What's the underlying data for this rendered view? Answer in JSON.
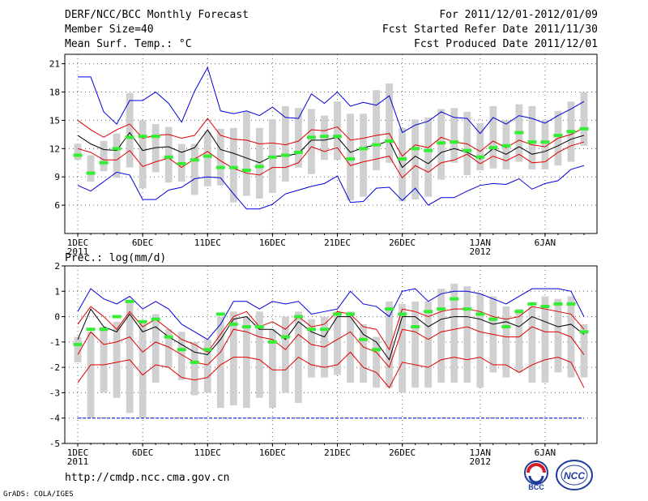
{
  "header": {
    "title": "DERF/NCC/BCC Monthly Forecast",
    "member_size": "Member Size=40",
    "variable": "Mean Surf. Temp.: °C",
    "period": "For 2011/12/01-2012/01/09",
    "started": "Fcst Started Refer Date 2011/11/30",
    "produced": "Fcst Produced Date 2011/12/01"
  },
  "precip_label": "Prec.: log(mm/d)",
  "footer": {
    "url": "http://cmdp.ncc.cma.gov.cn",
    "grads": "GrADS: COLA/IGES",
    "logo_bcc": "BCC",
    "logo_ncc": "NCC"
  },
  "colors": {
    "envelope": "#0000dd",
    "ensemble": "#dd0000",
    "mean": "#000000",
    "box": "#d0d0d0",
    "member": "#33ee33",
    "grid": "#666666"
  },
  "chart_data": [
    {
      "type": "line",
      "title": "Mean Surf. Temp.: °C",
      "x_ticks": [
        {
          "day": 1,
          "label": "1DEC",
          "sub": "2011"
        },
        {
          "day": 6,
          "label": "6DEC",
          "sub": ""
        },
        {
          "day": 11,
          "label": "11DEC",
          "sub": ""
        },
        {
          "day": 16,
          "label": "16DEC",
          "sub": ""
        },
        {
          "day": 21,
          "label": "21DEC",
          "sub": ""
        },
        {
          "day": 26,
          "label": "26DEC",
          "sub": ""
        },
        {
          "day": 32,
          "label": "1JAN",
          "sub": "2012"
        },
        {
          "day": 37,
          "label": "6JAN",
          "sub": ""
        }
      ],
      "xlim": [
        0,
        41
      ],
      "ylim": [
        3,
        22
      ],
      "y_ticks": [
        6,
        9,
        12,
        15,
        18,
        21
      ],
      "days": [
        1,
        2,
        3,
        4,
        5,
        6,
        7,
        8,
        9,
        10,
        11,
        12,
        13,
        14,
        15,
        16,
        17,
        18,
        19,
        20,
        21,
        22,
        23,
        24,
        25,
        26,
        27,
        28,
        29,
        30,
        31,
        32,
        33,
        34,
        35,
        36,
        37,
        38,
        39,
        40
      ],
      "series": [
        {
          "name": "max",
          "role": "envelope",
          "values": [
            19.6,
            19.6,
            15.9,
            14.6,
            17.1,
            17.1,
            18.0,
            16.8,
            14.8,
            18.1,
            20.6,
            16.0,
            15.7,
            16.0,
            15.5,
            16.4,
            15.3,
            15.2,
            17.8,
            16.8,
            18.0,
            16.5,
            16.9,
            16.6,
            17.6,
            13.7,
            14.5,
            14.9,
            15.9,
            15.3,
            15.2,
            13.6,
            15.3,
            14.6,
            15.5,
            15.2,
            14.7,
            15.5,
            16.2,
            17.0
          ]
        },
        {
          "name": "p75",
          "role": "ensemble",
          "values": [
            15.0,
            14.0,
            13.2,
            14.0,
            14.6,
            13.1,
            13.4,
            13.5,
            13.1,
            13.4,
            15.2,
            13.4,
            13.0,
            12.9,
            12.5,
            12.6,
            12.4,
            12.8,
            14.0,
            13.9,
            14.3,
            12.9,
            13.1,
            13.4,
            13.6,
            11.2,
            12.4,
            12.1,
            13.2,
            12.7,
            12.5,
            11.7,
            12.8,
            12.1,
            12.9,
            12.4,
            12.2,
            13.1,
            13.5,
            14.2
          ]
        },
        {
          "name": "mean",
          "role": "mean",
          "values": [
            13.4,
            12.5,
            11.9,
            11.8,
            13.7,
            11.8,
            12.1,
            12.2,
            11.6,
            12.1,
            14.0,
            11.9,
            11.5,
            11.0,
            10.5,
            11.2,
            11.2,
            11.5,
            12.9,
            12.9,
            13.2,
            11.6,
            12.1,
            12.4,
            12.8,
            10.0,
            11.2,
            10.4,
            11.6,
            12.0,
            11.6,
            10.9,
            12.0,
            11.4,
            12.2,
            11.4,
            11.7,
            12.3,
            13.0,
            13.4
          ]
        },
        {
          "name": "p25",
          "role": "ensemble",
          "values": [
            12.0,
            11.6,
            10.8,
            10.8,
            11.8,
            10.1,
            10.6,
            11.0,
            10.0,
            10.9,
            11.7,
            10.7,
            9.9,
            9.4,
            9.2,
            10.0,
            10.0,
            10.5,
            12.2,
            11.7,
            12.1,
            10.2,
            10.6,
            10.9,
            11.2,
            8.9,
            10.2,
            9.5,
            10.5,
            10.8,
            11.4,
            10.4,
            11.2,
            10.7,
            11.4,
            10.5,
            10.6,
            11.6,
            12.3,
            12.7
          ]
        },
        {
          "name": "min",
          "role": "envelope",
          "values": [
            8.1,
            7.5,
            8.5,
            9.5,
            9.2,
            6.6,
            6.6,
            7.6,
            7.9,
            8.8,
            9.0,
            8.9,
            7.2,
            5.6,
            5.6,
            6.1,
            7.2,
            7.6,
            8.0,
            8.3,
            9.1,
            6.3,
            6.4,
            7.8,
            7.9,
            6.5,
            7.8,
            6.0,
            6.8,
            6.8,
            7.5,
            8.1,
            8.3,
            8.2,
            8.8,
            7.7,
            8.3,
            8.6,
            9.8,
            10.2
          ]
        },
        {
          "name": "members",
          "role": "green",
          "values": [
            11.3,
            9.4,
            10.5,
            12.0,
            13.2,
            13.3,
            13.3,
            11.1,
            10.4,
            10.8,
            11.2,
            10.0,
            10.0,
            9.7,
            10.1,
            11.1,
            11.3,
            11.6,
            13.2,
            13.3,
            13.3,
            10.9,
            12.0,
            12.4,
            12.8,
            10.9,
            12.0,
            11.8,
            12.6,
            12.7,
            11.8,
            11.1,
            12.1,
            12.3,
            13.7,
            12.7,
            12.7,
            13.4,
            13.8,
            14.1
          ]
        }
      ],
      "boxes": [
        {
          "low": 10.8,
          "high": 12.5
        },
        {
          "low": 8.5,
          "high": 11.3
        },
        {
          "low": 9.6,
          "high": 12.8
        },
        {
          "low": 8.9,
          "high": 13.6
        },
        {
          "low": 10.0,
          "high": 17.9
        },
        {
          "low": 7.8,
          "high": 15.0
        },
        {
          "low": 9.5,
          "high": 14.6
        },
        {
          "low": 8.4,
          "high": 14.3
        },
        {
          "low": 8.5,
          "high": 12.5
        },
        {
          "low": 7.1,
          "high": 12.5
        },
        {
          "low": 8.0,
          "high": 13.8
        },
        {
          "low": 8.1,
          "high": 14.1
        },
        {
          "low": 6.3,
          "high": 14.2
        },
        {
          "low": 7.0,
          "high": 15.9
        },
        {
          "low": 6.7,
          "high": 14.2
        },
        {
          "low": 7.3,
          "high": 15.1
        },
        {
          "low": 8.5,
          "high": 16.5
        },
        {
          "low": 10.0,
          "high": 16.3
        },
        {
          "low": 9.3,
          "high": 16.2
        },
        {
          "low": 10.8,
          "high": 15.5
        },
        {
          "low": 10.8,
          "high": 17.0
        },
        {
          "low": 6.5,
          "high": 15.7
        },
        {
          "low": 6.9,
          "high": 15.7
        },
        {
          "low": 9.7,
          "high": 18.2
        },
        {
          "low": 10.5,
          "high": 18.9
        },
        {
          "low": 6.4,
          "high": 14.2
        },
        {
          "low": 6.6,
          "high": 15.1
        },
        {
          "low": 6.9,
          "high": 15.3
        },
        {
          "low": 8.7,
          "high": 16.2
        },
        {
          "low": 10.5,
          "high": 16.3
        },
        {
          "low": 9.2,
          "high": 15.9
        },
        {
          "low": 9.7,
          "high": 14.7
        },
        {
          "low": 9.9,
          "high": 16.5
        },
        {
          "low": 9.8,
          "high": 15.0
        },
        {
          "low": 10.6,
          "high": 16.7
        },
        {
          "low": 9.8,
          "high": 16.5
        },
        {
          "low": 9.8,
          "high": 15.0
        },
        {
          "low": 10.2,
          "high": 16.0
        },
        {
          "low": 10.6,
          "high": 17.0
        },
        {
          "low": 12.3,
          "high": 18.0
        }
      ]
    },
    {
      "type": "line",
      "title": "Prec.: log(mm/d)",
      "x_ticks": [
        {
          "day": 1,
          "label": "1DEC",
          "sub": "2011"
        },
        {
          "day": 6,
          "label": "6DEC",
          "sub": ""
        },
        {
          "day": 11,
          "label": "11DEC",
          "sub": ""
        },
        {
          "day": 16,
          "label": "16DEC",
          "sub": ""
        },
        {
          "day": 21,
          "label": "21DEC",
          "sub": ""
        },
        {
          "day": 26,
          "label": "26DEC",
          "sub": ""
        },
        {
          "day": 32,
          "label": "1JAN",
          "sub": "2012"
        },
        {
          "day": 37,
          "label": "6JAN",
          "sub": ""
        }
      ],
      "xlim": [
        0,
        41
      ],
      "ylim": [
        -5,
        2
      ],
      "y_ticks": [
        -5,
        -4,
        -3,
        -2,
        -1,
        0,
        1,
        2
      ],
      "days": [
        1,
        2,
        3,
        4,
        5,
        6,
        7,
        8,
        9,
        10,
        11,
        12,
        13,
        14,
        15,
        16,
        17,
        18,
        19,
        20,
        21,
        22,
        23,
        24,
        25,
        26,
        27,
        28,
        29,
        30,
        31,
        32,
        33,
        34,
        35,
        36,
        37,
        38,
        39,
        40
      ],
      "series": [
        {
          "name": "max",
          "role": "envelope",
          "values": [
            0.2,
            1.1,
            0.7,
            0.5,
            0.8,
            0.3,
            0.6,
            0.3,
            -0.3,
            -0.6,
            -0.9,
            -0.3,
            0.6,
            0.6,
            0.3,
            0.6,
            0.5,
            0.6,
            0.1,
            0.2,
            0.3,
            1.0,
            0.5,
            0.4,
            0.0,
            1.0,
            1.1,
            0.6,
            0.9,
            1.0,
            1.0,
            0.9,
            0.7,
            0.5,
            0.8,
            1.1,
            1.1,
            1.1,
            1.0,
            0.0
          ]
        },
        {
          "name": "p75",
          "role": "ensemble",
          "values": [
            -0.3,
            0.4,
            0.0,
            -0.5,
            0.2,
            -0.4,
            -0.1,
            -0.5,
            -0.9,
            -1.1,
            -1.4,
            -0.7,
            0.0,
            0.2,
            -0.4,
            -0.2,
            -0.5,
            0.0,
            -0.4,
            -0.3,
            0.2,
            0.1,
            -0.4,
            -0.5,
            -1.3,
            0.3,
            0.2,
            0.0,
            0.2,
            0.3,
            0.3,
            0.2,
            0.0,
            -0.1,
            0.0,
            0.4,
            0.3,
            0.2,
            0.1,
            -0.5
          ]
        },
        {
          "name": "mean",
          "role": "mean",
          "values": [
            -0.9,
            0.3,
            -0.4,
            -0.6,
            0.1,
            -0.6,
            -0.4,
            -0.8,
            -1.1,
            -1.4,
            -1.5,
            -0.9,
            -0.1,
            0.0,
            -0.5,
            -0.5,
            -0.9,
            -0.2,
            -0.6,
            -0.8,
            0.0,
            0.0,
            -0.7,
            -1.0,
            -1.7,
            0.0,
            0.0,
            -0.4,
            -0.1,
            0.0,
            0.0,
            -0.1,
            -0.3,
            -0.2,
            -0.4,
            0.0,
            -0.2,
            -0.4,
            -0.3,
            -0.7
          ]
        },
        {
          "name": "p25",
          "role": "ensemble",
          "values": [
            -1.5,
            -0.6,
            -1.1,
            -1.0,
            -0.8,
            -1.4,
            -1.0,
            -1.2,
            -1.5,
            -1.8,
            -1.9,
            -1.4,
            -0.5,
            -0.6,
            -0.8,
            -0.9,
            -1.3,
            -0.7,
            -1.1,
            -1.2,
            -0.9,
            -0.6,
            -1.2,
            -1.4,
            -2.0,
            -0.5,
            -0.6,
            -0.9,
            -0.6,
            -0.5,
            -0.4,
            -0.6,
            -0.7,
            -0.8,
            -0.8,
            -0.4,
            -0.6,
            -0.6,
            -0.8,
            -1.5
          ]
        },
        {
          "name": "p10",
          "role": "ensemble",
          "values": [
            -2.6,
            -1.9,
            -1.9,
            -1.8,
            -1.7,
            -2.3,
            -1.9,
            -2.0,
            -2.4,
            -2.5,
            -2.4,
            -1.9,
            -1.6,
            -1.6,
            -1.7,
            -2.1,
            -2.1,
            -1.6,
            -1.9,
            -2.0,
            -1.9,
            -1.4,
            -2.0,
            -2.2,
            -2.8,
            -1.8,
            -1.9,
            -2.0,
            -1.7,
            -1.6,
            -1.7,
            -1.6,
            -1.9,
            -1.9,
            -2.2,
            -1.9,
            -1.7,
            -1.6,
            -1.8,
            -2.8
          ]
        },
        {
          "name": "min",
          "role": "baseline",
          "values": [
            -4.0,
            -4.0,
            -4.0,
            -4.0,
            -4.0,
            -4.0,
            -4.0,
            -4.0,
            -4.0,
            -4.0,
            -4.0,
            -4.0,
            -4.0,
            -4.0,
            -4.0,
            -4.0,
            -4.0,
            -4.0,
            -4.0,
            -4.0,
            -4.0,
            -4.0,
            -4.0,
            -4.0,
            -4.0,
            -4.0,
            -4.0,
            -4.0,
            -4.0,
            -4.0,
            -4.0,
            -4.0,
            -4.0,
            -4.0,
            -4.0,
            -4.0,
            -4.0,
            -4.0,
            -4.0,
            -4.0
          ]
        },
        {
          "name": "members",
          "role": "green",
          "values": [
            -1.1,
            -0.5,
            -0.5,
            0.0,
            0.6,
            -0.2,
            -0.1,
            -0.8,
            -1.3,
            -1.8,
            -1.3,
            0.1,
            -0.3,
            -0.4,
            -0.4,
            -1.0,
            -0.8,
            0.0,
            -0.5,
            -0.5,
            0.1,
            0.1,
            -0.9,
            -1.3,
            0.3,
            0.1,
            -0.4,
            0.2,
            0.3,
            0.7,
            0.3,
            0.1,
            -0.1,
            -0.4,
            0.2,
            0.5,
            0.4,
            0.5,
            0.5,
            -0.6
          ]
        }
      ],
      "boxes": [
        {
          "low": -1.8,
          "high": -0.8
        },
        {
          "low": -4.0,
          "high": -0.6
        },
        {
          "low": -3.0,
          "high": -0.4
        },
        {
          "low": -3.2,
          "high": -0.2
        },
        {
          "low": -3.8,
          "high": 0.6
        },
        {
          "low": -4.0,
          "high": -0.2
        },
        {
          "low": -2.6,
          "high": 0.1
        },
        {
          "low": -2.0,
          "high": -0.5
        },
        {
          "low": -2.5,
          "high": -0.6
        },
        {
          "low": -3.1,
          "high": -1.0
        },
        {
          "low": -3.0,
          "high": -0.9
        },
        {
          "low": -3.6,
          "high": 0.0
        },
        {
          "low": -3.5,
          "high": 0.2
        },
        {
          "low": -3.6,
          "high": 0.0
        },
        {
          "low": -3.2,
          "high": 0.2
        },
        {
          "low": -3.6,
          "high": -0.5
        },
        {
          "low": -3.0,
          "high": 0.0
        },
        {
          "low": -3.4,
          "high": 0.2
        },
        {
          "low": -2.4,
          "high": -0.1
        },
        {
          "low": -2.4,
          "high": 0.0
        },
        {
          "low": -2.3,
          "high": 0.2
        },
        {
          "low": -2.6,
          "high": 0.2
        },
        {
          "low": -2.6,
          "high": -0.3
        },
        {
          "low": -2.8,
          "high": -0.8
        },
        {
          "low": -2.8,
          "high": 0.6
        },
        {
          "low": -3.0,
          "high": 0.5
        },
        {
          "low": -2.8,
          "high": 0.6
        },
        {
          "low": -2.8,
          "high": 0.6
        },
        {
          "low": -2.6,
          "high": 1.1
        },
        {
          "low": -2.6,
          "high": 1.3
        },
        {
          "low": -2.6,
          "high": 1.2
        },
        {
          "low": -2.8,
          "high": 0.9
        },
        {
          "low": -2.2,
          "high": 0.8
        },
        {
          "low": -2.4,
          "high": 0.4
        },
        {
          "low": -2.2,
          "high": 0.3
        },
        {
          "low": -2.6,
          "high": 0.4
        },
        {
          "low": -2.6,
          "high": 0.8
        },
        {
          "low": -2.2,
          "high": 0.7
        },
        {
          "low": -2.4,
          "high": 0.8
        },
        {
          "low": -2.4,
          "high": -0.3
        }
      ]
    }
  ]
}
